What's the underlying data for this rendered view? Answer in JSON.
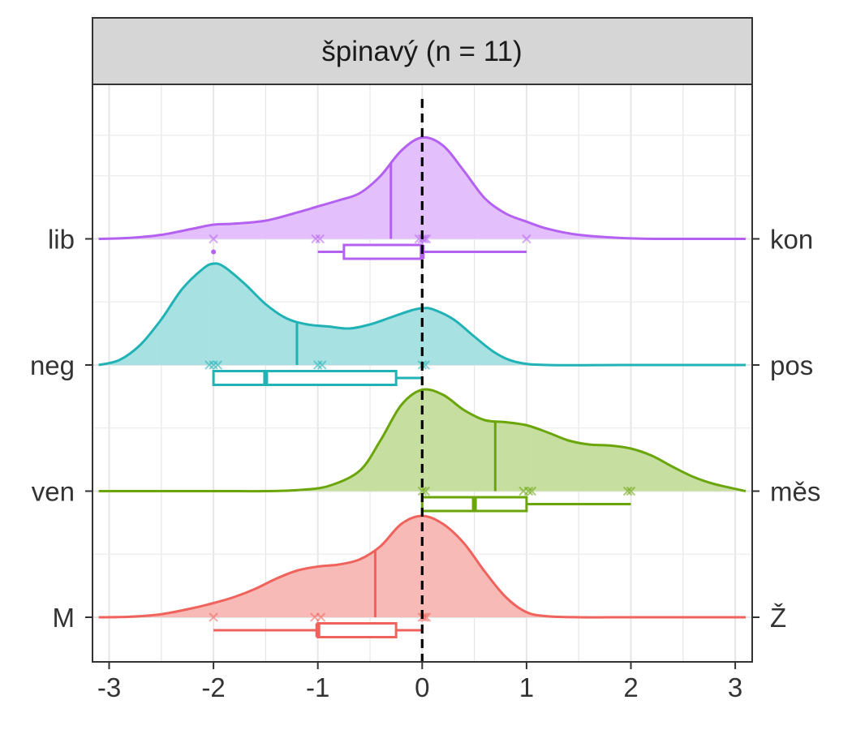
{
  "chart_data": {
    "type": "density_ridgeline_with_boxplots",
    "title": "špinavý (n = 11)",
    "xlabel": "",
    "ylabel": "",
    "xlim": [
      -3.1,
      3.1
    ],
    "x_ticks": [
      "-3",
      "-2",
      "-1",
      "0",
      "1",
      "2",
      "3"
    ],
    "x_tick_values": [
      -3,
      -2,
      -1,
      0,
      1,
      2,
      3
    ],
    "reference_line_x": 0,
    "grid": true,
    "series": [
      {
        "name": "M–Ž",
        "left_label": "M",
        "right_label": "Ž",
        "color": "#f0625c",
        "fill": "#f8b6b3",
        "mean": -0.45,
        "density_x": [
          -3.1,
          -2.8,
          -2.5,
          -2.2,
          -2.0,
          -1.8,
          -1.6,
          -1.4,
          -1.2,
          -1.0,
          -0.8,
          -0.6,
          -0.4,
          -0.2,
          0.0,
          0.2,
          0.4,
          0.6,
          0.8,
          1.0,
          1.2,
          1.5,
          2.0,
          2.5,
          3.1
        ],
        "density_y": [
          0.0,
          0.005,
          0.03,
          0.09,
          0.14,
          0.2,
          0.28,
          0.38,
          0.46,
          0.5,
          0.52,
          0.57,
          0.7,
          0.92,
          1.0,
          0.92,
          0.73,
          0.45,
          0.2,
          0.05,
          0.01,
          0.0,
          0.0,
          0.0,
          0.0
        ],
        "box": {
          "lower_whisker": -2,
          "q1": -1,
          "median": -1,
          "q3": -0.25,
          "upper_whisker": 0
        },
        "points": [
          -2,
          -1.03,
          -0.97,
          0,
          0.02,
          0.04
        ],
        "outliers": []
      },
      {
        "name": "ven–měs",
        "left_label": "ven",
        "right_label": "měs",
        "color": "#6aa50a",
        "fill": "#c3dc9a",
        "mean": 0.7,
        "density_x": [
          -3.1,
          -2.0,
          -1.5,
          -1.2,
          -0.9,
          -0.6,
          -0.4,
          -0.2,
          0.0,
          0.2,
          0.4,
          0.6,
          0.8,
          1.0,
          1.2,
          1.4,
          1.6,
          1.8,
          2.0,
          2.2,
          2.4,
          2.6,
          2.8,
          3.1
        ],
        "density_y": [
          0.0,
          0.0,
          0.0,
          0.01,
          0.05,
          0.2,
          0.5,
          0.85,
          1.0,
          0.95,
          0.8,
          0.7,
          0.68,
          0.65,
          0.58,
          0.5,
          0.46,
          0.45,
          0.42,
          0.35,
          0.24,
          0.14,
          0.07,
          0.0
        ],
        "box": {
          "lower_whisker": 0,
          "q1": 0,
          "median": 0.5,
          "q3": 1,
          "upper_whisker": 2
        },
        "points": [
          0,
          0.03,
          0.97,
          1.02,
          1.05,
          1.97,
          2.0
        ],
        "outliers": []
      },
      {
        "name": "neg–pos",
        "left_label": "neg",
        "right_label": "pos",
        "color": "#20b2b5",
        "fill": "#a3dfe0",
        "mean": -1.2,
        "density_x": [
          -3.1,
          -2.9,
          -2.7,
          -2.5,
          -2.3,
          -2.1,
          -2.0,
          -1.9,
          -1.7,
          -1.5,
          -1.3,
          -1.1,
          -0.9,
          -0.7,
          -0.5,
          -0.3,
          -0.1,
          0.0,
          0.1,
          0.3,
          0.5,
          0.7,
          0.9,
          1.2,
          2.0,
          3.1
        ],
        "density_y": [
          0.0,
          0.05,
          0.2,
          0.45,
          0.75,
          0.95,
          1.0,
          0.97,
          0.8,
          0.6,
          0.46,
          0.4,
          0.38,
          0.36,
          0.4,
          0.47,
          0.54,
          0.56,
          0.55,
          0.45,
          0.28,
          0.12,
          0.03,
          0.0,
          0.0,
          0.0
        ],
        "box": {
          "lower_whisker": -2,
          "q1": -2,
          "median": -1.5,
          "q3": -0.25,
          "upper_whisker": 0
        },
        "points": [
          -2.04,
          -2.0,
          -1.96,
          -1.0,
          -0.96,
          0.0,
          0.03
        ],
        "outliers": []
      },
      {
        "name": "lib–kon",
        "left_label": "lib",
        "right_label": "kon",
        "color": "#b460f1",
        "fill": "#e2bdfc",
        "mean": -0.3,
        "density_x": [
          -3.1,
          -2.8,
          -2.5,
          -2.2,
          -2.0,
          -1.8,
          -1.5,
          -1.2,
          -1.0,
          -0.8,
          -0.6,
          -0.4,
          -0.2,
          0.0,
          0.2,
          0.4,
          0.6,
          0.8,
          1.0,
          1.2,
          1.5,
          2.0,
          2.5,
          3.1
        ],
        "density_y": [
          0.0,
          0.01,
          0.04,
          0.1,
          0.14,
          0.15,
          0.18,
          0.26,
          0.32,
          0.38,
          0.45,
          0.62,
          0.87,
          1.0,
          0.92,
          0.67,
          0.4,
          0.25,
          0.17,
          0.1,
          0.04,
          0.005,
          0.0,
          0.0
        ],
        "box": {
          "lower_whisker": -1,
          "q1": -0.75,
          "median": 0,
          "q3": 0,
          "upper_whisker": 1
        },
        "points": [
          -2,
          -1.02,
          -0.98,
          -0.03,
          0.0,
          0.02,
          0.04,
          1.0
        ],
        "outliers": [
          -2
        ]
      }
    ]
  }
}
